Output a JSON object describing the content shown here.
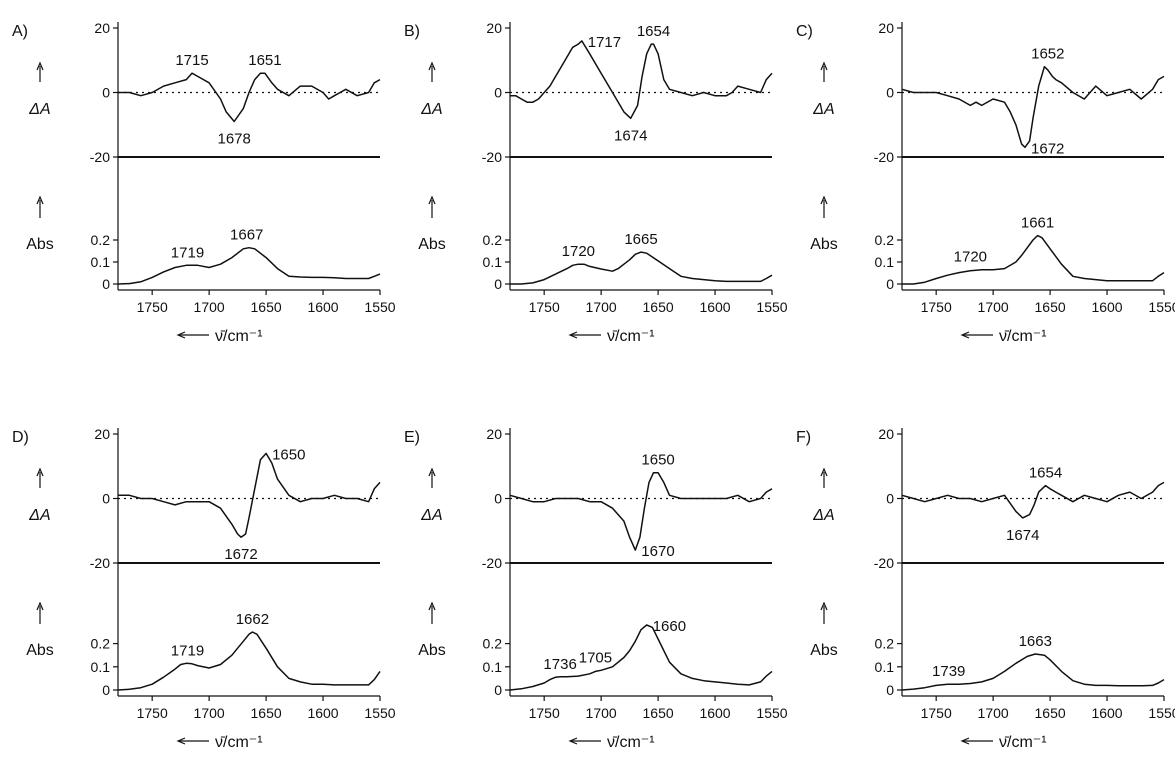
{
  "figure": {
    "xlabel": "ν̄/cm⁻¹",
    "diff_ylabel": "ΔA",
    "abs_ylabel": "Abs",
    "x_ticks": [
      "1750",
      "1700",
      "1650",
      "1600",
      "1550"
    ],
    "diff_y_ticks": [
      "20",
      "0",
      "-20"
    ],
    "abs_y_ticks": [
      "0.2",
      "0.1",
      "0"
    ]
  },
  "chart_data": [
    {
      "type": "line",
      "panel": "A)",
      "xlim": [
        1780,
        1550
      ],
      "diff": {
        "ylim": [
          -20,
          20
        ],
        "x": [
          1780,
          1770,
          1760,
          1750,
          1740,
          1730,
          1720,
          1715,
          1710,
          1700,
          1690,
          1685,
          1678,
          1670,
          1665,
          1660,
          1655,
          1651,
          1645,
          1640,
          1630,
          1620,
          1610,
          1600,
          1595,
          1590,
          1585,
          1580,
          1570,
          1560,
          1555,
          1550
        ],
        "y": [
          0,
          0,
          -1,
          0,
          2,
          3,
          4,
          6,
          5,
          3,
          -2,
          -6,
          -9,
          -5,
          0,
          4,
          6,
          6,
          3,
          1,
          -1,
          2,
          2,
          0,
          -2,
          -1,
          0,
          1,
          -1,
          0,
          3,
          4
        ],
        "labels": [
          {
            "text": "1715",
            "x": 1715,
            "y": 6,
            "pos": "above"
          },
          {
            "text": "1651",
            "x": 1651,
            "y": 6,
            "pos": "above"
          },
          {
            "text": "1678",
            "x": 1678,
            "y": -9,
            "pos": "below"
          }
        ]
      },
      "abs": {
        "ylim": [
          0,
          0.22
        ],
        "x": [
          1780,
          1770,
          1760,
          1750,
          1740,
          1730,
          1720,
          1710,
          1700,
          1690,
          1680,
          1670,
          1665,
          1660,
          1650,
          1640,
          1630,
          1620,
          1610,
          1600,
          1590,
          1580,
          1570,
          1560,
          1555,
          1550
        ],
        "y": [
          0,
          0.002,
          0.01,
          0.03,
          0.055,
          0.075,
          0.085,
          0.085,
          0.075,
          0.09,
          0.12,
          0.16,
          0.165,
          0.16,
          0.12,
          0.07,
          0.035,
          0.032,
          0.03,
          0.03,
          0.028,
          0.025,
          0.025,
          0.025,
          0.035,
          0.045
        ],
        "labels": [
          {
            "text": "1719",
            "x": 1719,
            "y": 0.085,
            "pos": "above"
          },
          {
            "text": "1667",
            "x": 1667,
            "y": 0.165,
            "pos": "above"
          }
        ]
      }
    },
    {
      "type": "line",
      "panel": "B)",
      "xlim": [
        1780,
        1550
      ],
      "diff": {
        "ylim": [
          -20,
          20
        ],
        "x": [
          1780,
          1775,
          1770,
          1765,
          1760,
          1755,
          1750,
          1745,
          1740,
          1735,
          1730,
          1725,
          1720,
          1717,
          1710,
          1700,
          1690,
          1680,
          1674,
          1668,
          1664,
          1660,
          1656,
          1654,
          1650,
          1645,
          1640,
          1630,
          1620,
          1610,
          1600,
          1590,
          1585,
          1580,
          1570,
          1560,
          1555,
          1550
        ],
        "y": [
          -1,
          -1,
          -2,
          -3,
          -3,
          -2,
          0,
          2,
          5,
          8,
          11,
          14,
          15,
          16,
          12,
          6,
          0,
          -6,
          -8,
          -4,
          5,
          12,
          15,
          15,
          12,
          4,
          1,
          0,
          -1,
          0,
          -1,
          -1,
          0,
          2,
          1,
          0,
          4,
          6
        ],
        "labels": [
          {
            "text": "1717",
            "x": 1717,
            "y": 16,
            "pos": "right"
          },
          {
            "text": "1654",
            "x": 1654,
            "y": 15,
            "pos": "above"
          },
          {
            "text": "1674",
            "x": 1674,
            "y": -8,
            "pos": "below"
          }
        ]
      },
      "abs": {
        "ylim": [
          0,
          0.22
        ],
        "x": [
          1780,
          1770,
          1760,
          1750,
          1740,
          1730,
          1725,
          1720,
          1715,
          1710,
          1700,
          1690,
          1685,
          1680,
          1675,
          1670,
          1665,
          1660,
          1650,
          1640,
          1630,
          1620,
          1610,
          1600,
          1590,
          1580,
          1570,
          1560,
          1555,
          1550
        ],
        "y": [
          0,
          0,
          0.005,
          0.02,
          0.045,
          0.07,
          0.085,
          0.09,
          0.09,
          0.08,
          0.068,
          0.058,
          0.07,
          0.09,
          0.11,
          0.135,
          0.145,
          0.14,
          0.105,
          0.07,
          0.035,
          0.025,
          0.02,
          0.015,
          0.012,
          0.012,
          0.012,
          0.012,
          0.025,
          0.04
        ],
        "labels": [
          {
            "text": "1720",
            "x": 1720,
            "y": 0.09,
            "pos": "above"
          },
          {
            "text": "1665",
            "x": 1665,
            "y": 0.145,
            "pos": "above"
          }
        ]
      }
    },
    {
      "type": "line",
      "panel": "C)",
      "xlim": [
        1780,
        1550
      ],
      "diff": {
        "ylim": [
          -20,
          20
        ],
        "x": [
          1780,
          1770,
          1760,
          1750,
          1740,
          1730,
          1720,
          1715,
          1710,
          1700,
          1690,
          1685,
          1680,
          1675,
          1672,
          1668,
          1665,
          1660,
          1655,
          1652,
          1648,
          1645,
          1640,
          1630,
          1620,
          1610,
          1600,
          1590,
          1580,
          1570,
          1560,
          1555,
          1550
        ],
        "y": [
          1,
          0,
          0,
          0,
          -1,
          -2,
          -4,
          -3,
          -4,
          -2,
          -3,
          -6,
          -10,
          -16,
          -17,
          -15,
          -8,
          2,
          8,
          7,
          5,
          4,
          3,
          0,
          -2,
          2,
          -1,
          0,
          1,
          -2,
          1,
          4,
          5
        ],
        "labels": [
          {
            "text": "1652",
            "x": 1652,
            "y": 8,
            "pos": "above"
          },
          {
            "text": "1672",
            "x": 1672,
            "y": -17,
            "pos": "right"
          }
        ]
      },
      "abs": {
        "ylim": [
          0,
          0.22
        ],
        "x": [
          1780,
          1770,
          1760,
          1750,
          1740,
          1730,
          1720,
          1710,
          1700,
          1690,
          1680,
          1675,
          1670,
          1665,
          1661,
          1657,
          1650,
          1640,
          1630,
          1620,
          1610,
          1600,
          1590,
          1580,
          1570,
          1560,
          1555,
          1550
        ],
        "y": [
          0,
          0,
          0.008,
          0.025,
          0.04,
          0.052,
          0.06,
          0.065,
          0.065,
          0.07,
          0.1,
          0.13,
          0.165,
          0.2,
          0.22,
          0.21,
          0.16,
          0.09,
          0.035,
          0.025,
          0.02,
          0.015,
          0.015,
          0.015,
          0.015,
          0.015,
          0.035,
          0.052
        ],
        "labels": [
          {
            "text": "1720",
            "x": 1720,
            "y": 0.065,
            "pos": "above"
          },
          {
            "text": "1661",
            "x": 1661,
            "y": 0.22,
            "pos": "above"
          }
        ]
      }
    },
    {
      "type": "line",
      "panel": "D)",
      "xlim": [
        1780,
        1550
      ],
      "diff": {
        "ylim": [
          -20,
          20
        ],
        "x": [
          1780,
          1770,
          1760,
          1750,
          1740,
          1730,
          1720,
          1710,
          1700,
          1690,
          1680,
          1675,
          1672,
          1668,
          1665,
          1660,
          1655,
          1650,
          1645,
          1640,
          1630,
          1620,
          1610,
          1600,
          1590,
          1580,
          1570,
          1560,
          1555,
          1550
        ],
        "y": [
          1,
          1,
          0,
          0,
          -1,
          -2,
          -1,
          -1,
          -1,
          -3,
          -8,
          -11,
          -12,
          -11,
          -6,
          3,
          12,
          14,
          11,
          6,
          1,
          -1,
          0,
          0,
          1,
          0,
          0,
          -1,
          3,
          5
        ],
        "labels": [
          {
            "text": "1650",
            "x": 1650,
            "y": 14,
            "pos": "right"
          },
          {
            "text": "1672",
            "x": 1672,
            "y": -12,
            "pos": "below"
          }
        ]
      },
      "abs": {
        "ylim": [
          0,
          0.28
        ],
        "x": [
          1780,
          1770,
          1760,
          1750,
          1740,
          1730,
          1725,
          1720,
          1715,
          1710,
          1700,
          1690,
          1680,
          1675,
          1670,
          1665,
          1662,
          1658,
          1650,
          1640,
          1630,
          1620,
          1610,
          1600,
          1590,
          1580,
          1570,
          1560,
          1555,
          1550
        ],
        "y": [
          0,
          0.003,
          0.01,
          0.025,
          0.055,
          0.09,
          0.11,
          0.115,
          0.113,
          0.105,
          0.095,
          0.11,
          0.15,
          0.18,
          0.21,
          0.24,
          0.25,
          0.24,
          0.18,
          0.1,
          0.05,
          0.035,
          0.025,
          0.025,
          0.022,
          0.022,
          0.022,
          0.022,
          0.045,
          0.08
        ],
        "labels": [
          {
            "text": "1719",
            "x": 1719,
            "y": 0.115,
            "pos": "above"
          },
          {
            "text": "1662",
            "x": 1662,
            "y": 0.25,
            "pos": "above"
          }
        ]
      }
    },
    {
      "type": "line",
      "panel": "E)",
      "xlim": [
        1780,
        1550
      ],
      "diff": {
        "ylim": [
          -20,
          20
        ],
        "x": [
          1780,
          1770,
          1760,
          1750,
          1740,
          1730,
          1720,
          1710,
          1700,
          1690,
          1680,
          1675,
          1670,
          1666,
          1662,
          1658,
          1654,
          1650,
          1645,
          1640,
          1630,
          1620,
          1610,
          1600,
          1590,
          1580,
          1570,
          1560,
          1555,
          1550
        ],
        "y": [
          1,
          0,
          -1,
          -1,
          0,
          0,
          0,
          -1,
          -1,
          -3,
          -7,
          -12,
          -16,
          -12,
          -3,
          5,
          8,
          8,
          5,
          1,
          0,
          0,
          0,
          0,
          0,
          1,
          -1,
          0,
          2,
          3
        ],
        "labels": [
          {
            "text": "1650",
            "x": 1650,
            "y": 8,
            "pos": "above"
          },
          {
            "text": "1670",
            "x": 1670,
            "y": -16,
            "pos": "right"
          }
        ]
      },
      "abs": {
        "ylim": [
          0,
          0.28
        ],
        "x": [
          1780,
          1770,
          1760,
          1750,
          1745,
          1740,
          1736,
          1730,
          1720,
          1710,
          1705,
          1700,
          1690,
          1680,
          1675,
          1670,
          1665,
          1660,
          1655,
          1650,
          1640,
          1630,
          1620,
          1610,
          1600,
          1590,
          1580,
          1570,
          1560,
          1555,
          1550
        ],
        "y": [
          0,
          0.005,
          0.015,
          0.03,
          0.045,
          0.055,
          0.057,
          0.057,
          0.06,
          0.07,
          0.08,
          0.085,
          0.1,
          0.14,
          0.17,
          0.21,
          0.26,
          0.28,
          0.27,
          0.22,
          0.12,
          0.07,
          0.05,
          0.04,
          0.035,
          0.03,
          0.025,
          0.022,
          0.035,
          0.06,
          0.08
        ],
        "labels": [
          {
            "text": "1736",
            "x": 1736,
            "y": 0.057,
            "pos": "above"
          },
          {
            "text": "1705",
            "x": 1705,
            "y": 0.085,
            "pos": "above"
          },
          {
            "text": "1660",
            "x": 1660,
            "y": 0.28,
            "pos": "right"
          }
        ]
      }
    },
    {
      "type": "line",
      "panel": "F)",
      "xlim": [
        1780,
        1550
      ],
      "diff": {
        "ylim": [
          -20,
          20
        ],
        "x": [
          1780,
          1770,
          1760,
          1750,
          1740,
          1730,
          1720,
          1710,
          1700,
          1690,
          1680,
          1674,
          1668,
          1664,
          1660,
          1654,
          1650,
          1645,
          1640,
          1630,
          1620,
          1610,
          1600,
          1590,
          1580,
          1570,
          1560,
          1555,
          1550
        ],
        "y": [
          1,
          0,
          -1,
          0,
          1,
          0,
          0,
          -1,
          0,
          1,
          -4,
          -6,
          -5,
          -2,
          2,
          4,
          3,
          2,
          1,
          -1,
          1,
          0,
          -1,
          1,
          2,
          0,
          2,
          4,
          5
        ],
        "labels": [
          {
            "text": "1654",
            "x": 1654,
            "y": 4,
            "pos": "above"
          },
          {
            "text": "1674",
            "x": 1674,
            "y": -6,
            "pos": "below"
          }
        ]
      },
      "abs": {
        "ylim": [
          0,
          0.28
        ],
        "x": [
          1780,
          1770,
          1760,
          1750,
          1740,
          1730,
          1720,
          1710,
          1700,
          1690,
          1680,
          1670,
          1663,
          1655,
          1650,
          1640,
          1630,
          1620,
          1610,
          1600,
          1590,
          1580,
          1570,
          1560,
          1555,
          1550
        ],
        "y": [
          0,
          0.004,
          0.01,
          0.02,
          0.025,
          0.025,
          0.028,
          0.035,
          0.05,
          0.08,
          0.115,
          0.145,
          0.155,
          0.15,
          0.13,
          0.08,
          0.04,
          0.025,
          0.02,
          0.02,
          0.018,
          0.018,
          0.018,
          0.02,
          0.03,
          0.045
        ],
        "labels": [
          {
            "text": "1739",
            "x": 1739,
            "y": 0.025,
            "pos": "above"
          },
          {
            "text": "1663",
            "x": 1663,
            "y": 0.155,
            "pos": "above"
          }
        ]
      }
    }
  ]
}
